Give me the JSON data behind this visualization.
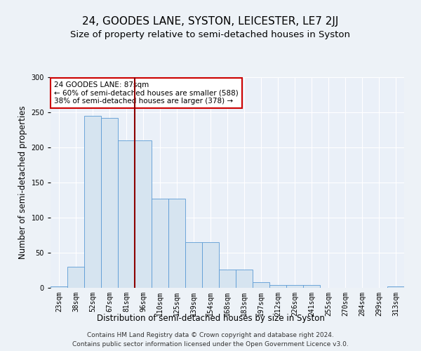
{
  "title": "24, GOODES LANE, SYSTON, LEICESTER, LE7 2JJ",
  "subtitle": "Size of property relative to semi-detached houses in Syston",
  "xlabel": "Distribution of semi-detached houses by size in Syston",
  "ylabel": "Number of semi-detached properties",
  "categories": [
    "23sqm",
    "38sqm",
    "52sqm",
    "67sqm",
    "81sqm",
    "96sqm",
    "110sqm",
    "125sqm",
    "139sqm",
    "154sqm",
    "168sqm",
    "183sqm",
    "197sqm",
    "212sqm",
    "226sqm",
    "241sqm",
    "255sqm",
    "270sqm",
    "284sqm",
    "299sqm",
    "313sqm"
  ],
  "values": [
    2,
    30,
    245,
    242,
    210,
    210,
    127,
    127,
    65,
    65,
    26,
    26,
    8,
    4,
    4,
    4,
    0,
    0,
    0,
    0,
    2
  ],
  "bar_color": "#d6e4f0",
  "bar_edge_color": "#5b9bd5",
  "vline_x_index": 4.5,
  "vline_color": "#8b0000",
  "annotation_title": "24 GOODES LANE: 87sqm",
  "annotation_line1": "← 60% of semi-detached houses are smaller (588)",
  "annotation_line2": "38% of semi-detached houses are larger (378) →",
  "annotation_box_facecolor": "#ffffff",
  "annotation_box_edgecolor": "#cc0000",
  "footer1": "Contains HM Land Registry data © Crown copyright and database right 2024.",
  "footer2": "Contains public sector information licensed under the Open Government Licence v3.0.",
  "bg_color": "#edf2f7",
  "plot_bg_color": "#eaf0f8",
  "ylim": [
    0,
    300
  ],
  "title_fontsize": 11,
  "subtitle_fontsize": 9.5,
  "axis_label_fontsize": 8.5,
  "tick_fontsize": 7,
  "annotation_fontsize": 7.5,
  "footer_fontsize": 6.5
}
